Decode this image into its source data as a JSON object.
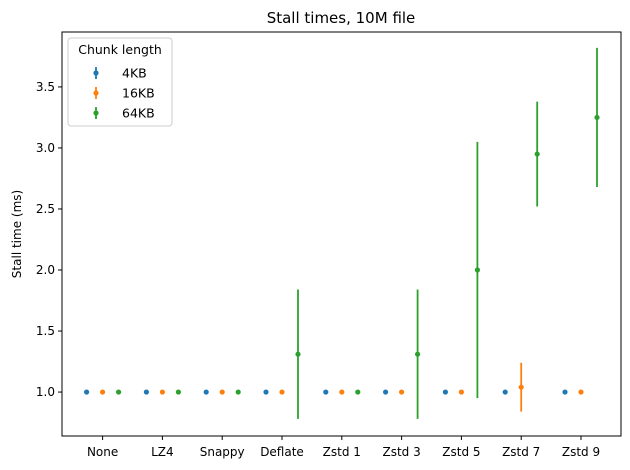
{
  "chart_data": {
    "type": "scatter",
    "title": "Stall times, 10M file",
    "xlabel": "",
    "ylabel": "Stall time (ms)",
    "categories": [
      "None",
      "LZ4",
      "Snappy",
      "Deflate",
      "Zstd 1",
      "Zstd 3",
      "Zstd 5",
      "Zstd 7",
      "Zstd 9"
    ],
    "ylim": [
      0.64,
      3.95
    ],
    "yticks": [
      "1.0",
      "1.5",
      "2.0",
      "2.5",
      "3.0",
      "3.5"
    ],
    "grid": false,
    "legend": {
      "title": "Chunk length",
      "placement": "top-left"
    },
    "series": [
      {
        "name": "4KB",
        "color": "#1f77b4",
        "values": [
          1.0,
          1.0,
          1.0,
          1.0,
          1.0,
          1.0,
          1.0,
          1.0,
          1.0
        ],
        "errors": [
          0,
          0,
          0,
          0,
          0,
          0,
          0,
          0,
          0
        ]
      },
      {
        "name": "16KB",
        "color": "#ff7f0e",
        "values": [
          1.0,
          1.0,
          1.0,
          1.0,
          1.0,
          1.0,
          1.0,
          1.04,
          1.0
        ],
        "errors": [
          0,
          0,
          0,
          0,
          0,
          0,
          0,
          0.2,
          0
        ]
      },
      {
        "name": "64KB",
        "color": "#2ca02c",
        "values": [
          1.0,
          1.0,
          1.0,
          1.31,
          1.0,
          1.31,
          2.0,
          2.95,
          3.25
        ],
        "errors": [
          0,
          0,
          0,
          0.53,
          0,
          0.53,
          1.05,
          0.43,
          0.57
        ]
      }
    ]
  }
}
